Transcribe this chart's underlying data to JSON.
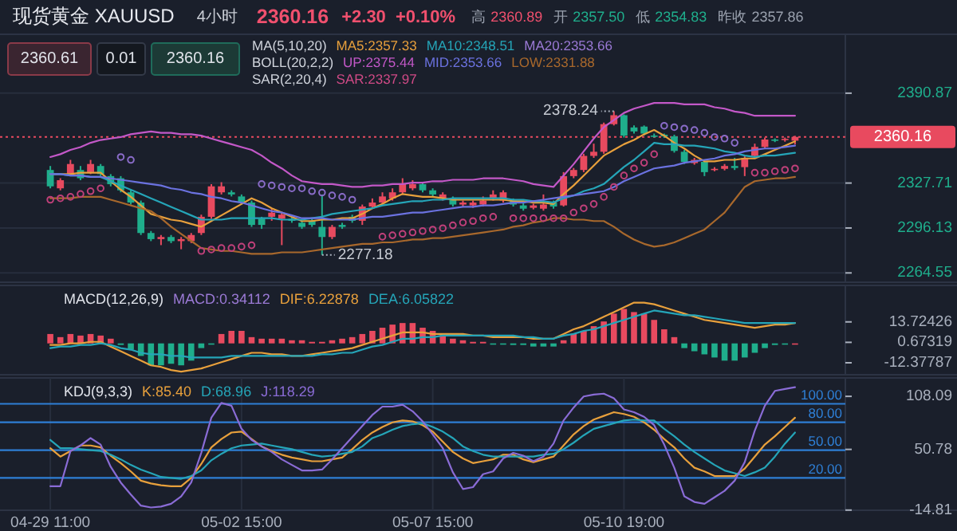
{
  "chart_data": [
    {
      "type": "candlestick",
      "title": "现货黄金 XAUUSD",
      "categories": [
        null,
        null,
        null,
        null,
        null,
        null,
        null,
        null,
        null,
        null,
        null,
        null,
        null,
        null,
        null,
        null,
        null,
        null,
        null,
        null,
        null,
        null,
        null,
        null,
        null,
        null,
        null,
        null,
        null,
        null,
        null,
        null,
        null,
        null,
        null,
        null,
        null,
        null,
        null,
        null,
        null,
        null,
        null,
        null,
        null,
        null,
        null,
        null,
        null,
        null,
        null,
        null,
        null,
        null,
        null,
        null,
        null,
        null,
        null,
        null,
        null,
        null,
        null,
        null,
        null,
        null,
        null,
        null,
        null,
        null,
        null,
        null,
        null,
        null,
        null
      ],
      "ohlc": [
        [
          2336.9,
          2339.7,
          2324.0,
          2325.4
        ],
        [
          2324.0,
          2331.1,
          2322.6,
          2329.7
        ],
        [
          2334.0,
          2344.0,
          2332.6,
          2341.1
        ],
        [
          2336.9,
          2339.7,
          2329.7,
          2331.1
        ],
        [
          2335.4,
          2344.0,
          2334.0,
          2341.1
        ],
        [
          2339.7,
          2341.1,
          2332.6,
          2334.0
        ],
        [
          2332.6,
          2334.0,
          2325.4,
          2326.9
        ],
        [
          2331.1,
          2332.6,
          2321.2,
          2322.6
        ],
        [
          2321.2,
          2322.6,
          2312.6,
          2314.0
        ],
        [
          2314.0,
          2315.4,
          2291.2,
          2292.6
        ],
        [
          2292.6,
          2294.0,
          2286.9,
          2288.3
        ],
        [
          2288.3,
          2291.2,
          2284.1,
          2289.8
        ],
        [
          2289.8,
          2291.2,
          2285.5,
          2286.9
        ],
        [
          2286.9,
          2289.8,
          2281.2,
          2288.3
        ],
        [
          2286.9,
          2292.6,
          2285.5,
          2291.2
        ],
        [
          2292.6,
          2305.5,
          2291.2,
          2304.0
        ],
        [
          2304.0,
          2326.9,
          2302.6,
          2325.4
        ],
        [
          2321.2,
          2328.3,
          2319.7,
          2325.4
        ],
        [
          2321.2,
          2322.6,
          2318.3,
          2319.7
        ],
        [
          2318.3,
          2319.7,
          2312.6,
          2314.0
        ],
        [
          2314.0,
          2315.4,
          2296.9,
          2298.3
        ],
        [
          2302.6,
          2304.0,
          2295.5,
          2298.3
        ],
        [
          2304.0,
          2309.7,
          2301.2,
          2306.9
        ],
        [
          2302.6,
          2306.9,
          2284.1,
          2305.5
        ],
        [
          2302.6,
          2304.0,
          2299.8,
          2301.2
        ],
        [
          2299.8,
          2301.2,
          2295.5,
          2296.9
        ],
        [
          2301.2,
          2302.6,
          2296.9,
          2298.3
        ],
        [
          2296.9,
          2319.7,
          2277.18,
          2289.8
        ],
        [
          2289.8,
          2298.3,
          2288.3,
          2296.9
        ],
        [
          2298.3,
          2299.8,
          2295.5,
          2296.9
        ],
        [
          2304.0,
          2305.5,
          2299.8,
          2301.2
        ],
        [
          2301.2,
          2312.6,
          2298.3,
          2311.2
        ],
        [
          2311.2,
          2316.9,
          2309.7,
          2314.0
        ],
        [
          2314.0,
          2321.2,
          2312.6,
          2318.3
        ],
        [
          2316.9,
          2324.0,
          2315.4,
          2321.2
        ],
        [
          2321.2,
          2331.1,
          2319.7,
          2326.9
        ],
        [
          2324.0,
          2329.7,
          2322.6,
          2326.9
        ],
        [
          2326.9,
          2328.3,
          2321.2,
          2322.6
        ],
        [
          2322.6,
          2324.0,
          2318.3,
          2319.7
        ],
        [
          2316.9,
          2321.2,
          2315.4,
          2319.7
        ],
        [
          2316.9,
          2318.3,
          2311.2,
          2312.6
        ],
        [
          2312.6,
          2315.4,
          2311.2,
          2314.0
        ],
        [
          2312.0,
          2315.4,
          2310.3,
          2314.0
        ],
        [
          2312.6,
          2318.3,
          2311.2,
          2315.4
        ],
        [
          2316.9,
          2322.6,
          2315.4,
          2319.7
        ],
        [
          2315.4,
          2322.6,
          2314.0,
          2321.2
        ],
        [
          2315.4,
          2316.9,
          2311.2,
          2312.6
        ],
        [
          2312.0,
          2314.0,
          2308.3,
          2309.7
        ],
        [
          2310.3,
          2313.2,
          2309.2,
          2312.0
        ],
        [
          2309.7,
          2319.7,
          2308.3,
          2312.6
        ],
        [
          2314.0,
          2315.4,
          2309.7,
          2311.2
        ],
        [
          2312.0,
          2335.4,
          2311.2,
          2332.6
        ],
        [
          2332.6,
          2338.3,
          2331.1,
          2336.9
        ],
        [
          2336.9,
          2348.3,
          2335.4,
          2346.8
        ],
        [
          2346.8,
          2355.4,
          2345.4,
          2349.7
        ],
        [
          2349.7,
          2370.2,
          2348.3,
          2369.1
        ],
        [
          2369.1,
          2378.24,
          2368.2,
          2375.4
        ],
        [
          2375.4,
          2376.0,
          2359.7,
          2361.1
        ],
        [
          2366.8,
          2368.2,
          2362.5,
          2364.0
        ],
        [
          2367.4,
          2368.2,
          2361.1,
          2362.5
        ],
        [
          2361.1,
          2362.5,
          2359.7,
          2360.5
        ],
        [
          2361.7,
          2362.5,
          2359.4,
          2360.5
        ],
        [
          2360.5,
          2361.7,
          2349.1,
          2350.3
        ],
        [
          2349.7,
          2351.1,
          2341.1,
          2342.6
        ],
        [
          2341.7,
          2345.4,
          2340.6,
          2344.0
        ],
        [
          2342.6,
          2344.0,
          2332.6,
          2335.4
        ],
        [
          2337.1,
          2338.9,
          2336.0,
          2337.7
        ],
        [
          2337.7,
          2341.1,
          2336.6,
          2339.7
        ],
        [
          2339.7,
          2345.4,
          2336.9,
          2338.3
        ],
        [
          2338.9,
          2346.8,
          2332.6,
          2345.4
        ],
        [
          2346.8,
          2355.4,
          2345.4,
          2353.1
        ],
        [
          2353.1,
          2359.7,
          2352.0,
          2358.3
        ],
        [
          2358.3,
          2359.1,
          2356.5,
          2357.4
        ],
        [
          2358.3,
          2359.7,
          2356.8,
          2358.8
        ],
        [
          2357.5,
          2360.89,
          2354.83,
          2360.16
        ]
      ],
      "series": [
        {
          "name": "MA5:2357.33",
          "type": "line",
          "color": "#e8a03c",
          "values": [
            2334,
            2334,
            2334,
            2335,
            2335,
            2335,
            2329,
            2323,
            2318,
            2312,
            2306,
            2304,
            2302,
            2301,
            2299,
            2297,
            2301,
            2305,
            2309,
            2313,
            2317,
            2314,
            2310,
            2307,
            2304,
            2301,
            2301,
            2302,
            2302,
            2303,
            2303,
            2306,
            2310,
            2313,
            2317,
            2320,
            2319,
            2318,
            2318,
            2317,
            2316,
            2316,
            2316,
            2316,
            2316,
            2316,
            2315,
            2315,
            2314,
            2314,
            2313,
            2320,
            2326,
            2333,
            2340,
            2347,
            2351,
            2355,
            2358,
            2362,
            2365,
            2361,
            2356,
            2352,
            2347,
            2343,
            2343,
            2344,
            2344,
            2345,
            2345,
            2348,
            2351,
            2354,
            2357
          ]
        },
        {
          "name": "MA10:2348.51",
          "type": "line",
          "color": "#25a5b8",
          "values": [
            2334,
            2334,
            2333,
            2333,
            2332,
            2332,
            2329,
            2326,
            2323,
            2320,
            2317,
            2314,
            2311,
            2308,
            2305,
            2302,
            2302,
            2302,
            2303,
            2303,
            2303,
            2303,
            2303,
            2302,
            2302,
            2302,
            2303,
            2304,
            2306,
            2307,
            2308,
            2309,
            2310,
            2312,
            2313,
            2314,
            2315,
            2315,
            2316,
            2316,
            2317,
            2317,
            2317,
            2317,
            2317,
            2317,
            2316,
            2316,
            2315,
            2315,
            2314,
            2317,
            2319,
            2322,
            2324,
            2327,
            2333,
            2339,
            2344,
            2350,
            2356,
            2355,
            2355,
            2354,
            2354,
            2353,
            2352,
            2350,
            2349,
            2347,
            2346,
            2347,
            2347,
            2348,
            2349
          ]
        },
        {
          "name": "UP:2375.44",
          "type": "line",
          "color": "#c358c8",
          "values": [
            2346,
            2348,
            2351,
            2353,
            2356,
            2358,
            2359,
            2360,
            2362,
            2363,
            2364,
            2363,
            2363,
            2362,
            2362,
            2361,
            2359,
            2357,
            2355,
            2353,
            2351,
            2347,
            2342,
            2338,
            2333,
            2329,
            2328,
            2327,
            2327,
            2326,
            2325,
            2325,
            2326,
            2326,
            2327,
            2327,
            2328,
            2328,
            2329,
            2329,
            2330,
            2330,
            2330,
            2331,
            2331,
            2331,
            2330,
            2329,
            2327,
            2326,
            2325,
            2333,
            2341,
            2350,
            2359,
            2367,
            2372,
            2377,
            2380,
            2382,
            2384,
            2384,
            2384,
            2383,
            2383,
            2383,
            2381,
            2380,
            2378,
            2377,
            2375,
            2375,
            2375,
            2375,
            2375
          ]
        },
        {
          "name": "MID:2353.66",
          "type": "line",
          "color": "#6b72e0",
          "values": [
            2334,
            2334,
            2333,
            2333,
            2332,
            2332,
            2331,
            2330,
            2329,
            2328,
            2327,
            2326,
            2324,
            2323,
            2321,
            2320,
            2318,
            2317,
            2315,
            2314,
            2312,
            2310,
            2308,
            2307,
            2305,
            2303,
            2303,
            2303,
            2302,
            2302,
            2302,
            2303,
            2304,
            2304,
            2305,
            2306,
            2307,
            2307,
            2308,
            2309,
            2310,
            2311,
            2311,
            2312,
            2312,
            2313,
            2314,
            2314,
            2315,
            2316,
            2317,
            2318,
            2319,
            2320,
            2321,
            2322,
            2325,
            2329,
            2332,
            2335,
            2338,
            2339,
            2340,
            2342,
            2343,
            2344,
            2345,
            2347,
            2348,
            2350,
            2351,
            2352,
            2352,
            2353,
            2354
          ]
        },
        {
          "name": "LOW:2331.88",
          "type": "line",
          "color": "#a8682c",
          "values": [
            2317,
            2317,
            2317,
            2318,
            2318,
            2318,
            2316,
            2314,
            2312,
            2310,
            2308,
            2303,
            2297,
            2292,
            2287,
            2282,
            2281,
            2280,
            2280,
            2279,
            2278,
            2278,
            2278,
            2279,
            2279,
            2279,
            2280,
            2281,
            2282,
            2283,
            2284,
            2285,
            2285,
            2286,
            2286,
            2287,
            2288,
            2288,
            2289,
            2289,
            2290,
            2291,
            2292,
            2293,
            2294,
            2295,
            2297,
            2298,
            2300,
            2301,
            2303,
            2303,
            2302,
            2302,
            2301,
            2301,
            2297,
            2292,
            2288,
            2285,
            2283,
            2284,
            2286,
            2289,
            2292,
            2295,
            2301,
            2307,
            2316,
            2325,
            2329,
            2330,
            2331,
            2331,
            2332
          ]
        },
        {
          "name": "SAR:2337.97",
          "type": "scatter",
          "marker": "circle",
          "color": "#d04a86",
          "values": [
            2316,
            2317,
            2318,
            2320,
            2322,
            2324,
            null,
            2346,
            2344,
            null,
            null,
            null,
            null,
            null,
            null,
            2280,
            2281,
            2282,
            2282,
            2283,
            2284,
            2327,
            2326,
            2325,
            2324,
            2324,
            2322,
            2321,
            2319,
            2318,
            2316,
            null,
            null,
            2290,
            2291,
            2292,
            2293,
            2294,
            2295,
            2296,
            2298,
            2300,
            2301,
            2303,
            2304,
            null,
            2303,
            2303,
            2303,
            2303,
            2303,
            2303,
            2307,
            2310,
            2313,
            2318,
            2325,
            2333,
            2338,
            2342,
            2348,
            2368,
            2367,
            2366,
            2365,
            2363,
            2360,
            2359,
            2356,
            null,
            2335,
            2335,
            2336,
            2337,
            2338
          ],
          "colors": [
            "#c0407a",
            "#c0407a",
            "#c0407a",
            "#c0407a",
            "#c0407a",
            "#c0407a",
            null,
            "#8a6cc9",
            "#8a6cc9",
            null,
            null,
            null,
            null,
            null,
            null,
            "#c0407a",
            "#c0407a",
            "#c0407a",
            "#c0407a",
            "#c0407a",
            "#c0407a",
            "#8a6cc9",
            "#8a6cc9",
            "#8a6cc9",
            "#8a6cc9",
            "#8a6cc9",
            "#8a6cc9",
            "#8a6cc9",
            "#8a6cc9",
            "#8a6cc9",
            "#8a6cc9",
            null,
            null,
            "#c0407a",
            "#c0407a",
            "#c0407a",
            "#c0407a",
            "#c0407a",
            "#c0407a",
            "#c0407a",
            "#c0407a",
            "#c0407a",
            "#c0407a",
            "#c0407a",
            "#c0407a",
            null,
            "#c0407a",
            "#c0407a",
            "#c0407a",
            "#c0407a",
            "#c0407a",
            "#c0407a",
            "#c0407a",
            "#c0407a",
            "#c0407a",
            "#c0407a",
            "#c0407a",
            "#c0407a",
            "#c0407a",
            "#c0407a",
            "#c0407a",
            "#8a6cc9",
            "#8a6cc9",
            "#8a6cc9",
            "#8a6cc9",
            "#8a6cc9",
            "#8a6cc9",
            "#8a6cc9",
            "#8a6cc9",
            null,
            "#c0407a",
            "#c0407a",
            "#c0407a",
            "#c0407a",
            "#c0407a"
          ]
        }
      ],
      "ylim": [
        2258,
        2393.6
      ],
      "yticks": [
        2390.87,
        2327.71,
        2296.13,
        2264.55
      ],
      "grid": "y",
      "legend": "top",
      "ref_lines": [
        {
          "axis": "y",
          "value": 2360.16,
          "label": "2360.16",
          "color": "#e84a5f",
          "line_style": "dotted"
        }
      ],
      "annotations": [
        "4小时",
        "2360.16",
        "+2.30",
        "+0.10%",
        "高",
        "2360.89",
        "开",
        "2357.50",
        "低",
        "2354.83",
        "昨收",
        "2357.86",
        "2360.61",
        "0.01",
        "2360.16",
        "MA(5,10,20)",
        "MA20:2353.66",
        "BOLL(20,2,2)",
        "SAR(2,20,4)",
        "2378.24",
        "2277.18"
      ]
    },
    {
      "type": "bar",
      "title": "MACD(12,26,9)",
      "categories": [
        null,
        null,
        null,
        null,
        null,
        null,
        null,
        null,
        null,
        null,
        null,
        null,
        null,
        null,
        null,
        null,
        null,
        null,
        null,
        null,
        null,
        null,
        null,
        null,
        null,
        null,
        null,
        null,
        null,
        null,
        null,
        null,
        null,
        null,
        null,
        null,
        null,
        null,
        null,
        null,
        null,
        null,
        null,
        null,
        null,
        null,
        null,
        null,
        null,
        null,
        null,
        null,
        null,
        null,
        null,
        null,
        null,
        null,
        null,
        null,
        null,
        null,
        null,
        null,
        null,
        null,
        null,
        null,
        null,
        null,
        null,
        null,
        null,
        null,
        null
      ],
      "series": [
        {
          "name": "MACD:0.34112",
          "type": "bar",
          "values": [
            6,
            4,
            6,
            5,
            6,
            5,
            3,
            -1,
            -4,
            -8,
            -14,
            -14,
            -13,
            -14,
            -11,
            -3,
            0,
            6,
            8,
            8,
            4,
            3,
            3,
            3,
            2,
            2,
            1,
            1,
            2,
            3,
            4,
            6,
            8,
            10,
            12,
            13,
            13,
            10,
            8,
            6,
            3,
            2,
            1,
            1,
            0,
            0,
            -1,
            -1,
            -2,
            -2,
            -2,
            2,
            6,
            8,
            11,
            14,
            19,
            22,
            20,
            19,
            15,
            9,
            4,
            -3,
            -5,
            -7,
            -9,
            -11,
            -11,
            -9,
            -6,
            -3,
            -1,
            0,
            0
          ],
          "colors": [
            "#e84a5f",
            "#e84a5f",
            "#e84a5f",
            "#e84a5f",
            "#e84a5f",
            "#e84a5f",
            "#e84a5f",
            "#1fae8c",
            "#1fae8c",
            "#1fae8c",
            "#1fae8c",
            "#1fae8c",
            "#1fae8c",
            "#1fae8c",
            "#1fae8c",
            "#1fae8c",
            "#1fae8c",
            "#e84a5f",
            "#e84a5f",
            "#e84a5f",
            "#e84a5f",
            "#e84a5f",
            "#e84a5f",
            "#e84a5f",
            "#e84a5f",
            "#e84a5f",
            "#e84a5f",
            "#e84a5f",
            "#e84a5f",
            "#e84a5f",
            "#e84a5f",
            "#e84a5f",
            "#e84a5f",
            "#e84a5f",
            "#e84a5f",
            "#e84a5f",
            "#e84a5f",
            "#e84a5f",
            "#e84a5f",
            "#e84a5f",
            "#e84a5f",
            "#e84a5f",
            "#e84a5f",
            "#e84a5f",
            "#1fae8c",
            "#1fae8c",
            "#1fae8c",
            "#1fae8c",
            "#1fae8c",
            "#1fae8c",
            "#1fae8c",
            "#e84a5f",
            "#e84a5f",
            "#e84a5f",
            "#e84a5f",
            "#e84a5f",
            "#e84a5f",
            "#e84a5f",
            "#e84a5f",
            "#e84a5f",
            "#e84a5f",
            "#e84a5f",
            "#e84a5f",
            "#1fae8c",
            "#1fae8c",
            "#1fae8c",
            "#1fae8c",
            "#1fae8c",
            "#1fae8c",
            "#1fae8c",
            "#1fae8c",
            "#1fae8c",
            "#1fae8c",
            "#1fae8c",
            "#e84a5f"
          ]
        },
        {
          "name": "DIF:6.22878",
          "type": "line",
          "color": "#e8a03c",
          "values": [
            -1,
            -1,
            0,
            0,
            1,
            1,
            -2,
            -5,
            -8,
            -11,
            -14,
            -15,
            -17,
            -18,
            -17,
            -16,
            -14,
            -12,
            -10,
            -8,
            -6,
            -6,
            -7,
            -7,
            -8,
            -8,
            -7,
            -6,
            -5,
            -4,
            -3,
            -1,
            1,
            3,
            5,
            7,
            7,
            7,
            6,
            6,
            6,
            6,
            5,
            5,
            4,
            4,
            4,
            4,
            3,
            3,
            3,
            6,
            9,
            11,
            14,
            17,
            20,
            23,
            26,
            26,
            25,
            23,
            21,
            19,
            17,
            15,
            14,
            13,
            12,
            11,
            10,
            11,
            12,
            12,
            13
          ]
        },
        {
          "name": "DEA:6.05822",
          "type": "line",
          "color": "#25a5b8",
          "values": [
            -3,
            -2,
            -2,
            -1,
            -1,
            0,
            -1,
            -3,
            -4,
            -6,
            -7,
            -7,
            -8,
            -8,
            -9,
            -9,
            -9,
            -9,
            -8,
            -8,
            -8,
            -8,
            -8,
            -8,
            -8,
            -8,
            -8,
            -7,
            -7,
            -6,
            -6,
            -4,
            -2,
            -1,
            1,
            3,
            3,
            4,
            4,
            5,
            5,
            5,
            5,
            5,
            5,
            5,
            5,
            4,
            4,
            3,
            3,
            5,
            6,
            8,
            9,
            11,
            13,
            15,
            17,
            19,
            21,
            20,
            19,
            18,
            18,
            17,
            16,
            15,
            14,
            13,
            13,
            13,
            13,
            13,
            13
          ]
        }
      ],
      "ylim": [
        -20,
        37
      ],
      "yticks": [
        13.72426,
        0.67319,
        -12.37787
      ],
      "legend": "top left"
    },
    {
      "type": "line",
      "title": "KDJ(9,3,3)",
      "categories": [
        "04-29 11:00",
        null,
        null,
        null,
        null,
        null,
        null,
        null,
        null,
        null,
        null,
        null,
        null,
        null,
        null,
        null,
        null,
        null,
        null,
        "05-02 15:00",
        null,
        null,
        null,
        null,
        null,
        null,
        null,
        null,
        null,
        null,
        null,
        null,
        null,
        null,
        null,
        null,
        null,
        null,
        "05-07 15:00",
        null,
        null,
        null,
        null,
        null,
        null,
        null,
        null,
        null,
        null,
        null,
        null,
        null,
        null,
        null,
        null,
        null,
        null,
        "05-10 19:00",
        null,
        null,
        null,
        null,
        null,
        null,
        null,
        null,
        null,
        null,
        null,
        null,
        null,
        null,
        null,
        null,
        null
      ],
      "series": [
        {
          "name": "K:85.40",
          "color": "#e8a03c",
          "values": [
            52,
            43,
            49,
            55,
            55,
            53,
            44,
            36,
            27,
            17,
            14,
            12,
            11,
            11,
            20,
            35,
            53,
            62,
            69,
            70,
            62,
            54,
            49,
            45,
            42,
            40,
            38,
            38,
            40,
            42,
            51,
            61,
            69,
            75,
            80,
            82,
            81,
            77,
            70,
            59,
            48,
            41,
            36,
            38,
            40,
            45,
            45,
            40,
            37,
            40,
            43,
            55,
            67,
            76,
            83,
            87,
            91,
            89,
            86,
            80,
            72,
            62,
            53,
            41,
            31,
            27,
            22,
            22,
            22,
            30,
            43,
            56,
            65,
            75,
            85
          ]
        },
        {
          "name": "D:68.96",
          "color": "#25a5b8",
          "values": [
            61,
            52,
            52,
            51,
            50,
            49,
            45,
            40,
            34,
            29,
            25,
            21,
            20,
            19,
            22,
            28,
            39,
            46,
            52,
            55,
            56,
            57,
            55,
            53,
            51,
            48,
            45,
            43,
            44,
            46,
            48,
            54,
            63,
            67,
            72,
            76,
            78,
            79,
            75,
            70,
            63,
            54,
            49,
            45,
            43,
            43,
            43,
            43,
            43,
            45,
            46,
            51,
            58,
            66,
            73,
            76,
            79,
            82,
            83,
            82,
            82,
            73,
            65,
            56,
            48,
            41,
            34,
            28,
            25,
            22,
            26,
            31,
            43,
            57,
            69
          ]
        },
        {
          "name": "J:118.29",
          "color": "#8a6cd6",
          "values": [
            11,
            11,
            49,
            55,
            63,
            56,
            32,
            15,
            2,
            -10,
            -12,
            -11,
            -8,
            0,
            15,
            47,
            85,
            101,
            98,
            73,
            61,
            54,
            48,
            40,
            34,
            28,
            28,
            29,
            40,
            52,
            64,
            76,
            88,
            97,
            97,
            99,
            92,
            81,
            67,
            52,
            26,
            8,
            10,
            24,
            27,
            41,
            47,
            44,
            38,
            43,
            57,
            82,
            96,
            108,
            110,
            111,
            106,
            94,
            91,
            86,
            77,
            56,
            31,
            0,
            -6,
            -8,
            -1,
            6,
            17,
            37,
            71,
            98,
            114,
            116,
            118
          ]
        }
      ],
      "ylim": [
        -15,
        128
      ],
      "yticks": [
        108.09,
        50.78,
        -14.81
      ],
      "grid": "x",
      "legend": "top",
      "ref_lines": [
        {
          "axis": "y",
          "value": 100,
          "label": "100.00",
          "color": "#2e7fd6",
          "line_style": "solid"
        },
        {
          "axis": "y",
          "value": 80,
          "label": "80.00",
          "color": "#2e7fd6",
          "line_style": "solid"
        },
        {
          "axis": "y",
          "value": 50,
          "label": "50.00",
          "color": "#2e7fd6",
          "line_style": "solid"
        },
        {
          "axis": "y",
          "value": 20,
          "label": "20.00",
          "color": "#2e7fd6",
          "line_style": "solid"
        }
      ]
    }
  ]
}
